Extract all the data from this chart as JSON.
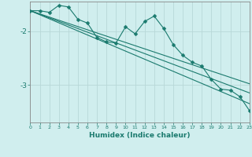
{
  "xlabel": "Humidex (Indice chaleur)",
  "bg_color": "#d0eeee",
  "grid_color": "#b8d8d8",
  "line_color": "#1a7a6e",
  "x_min": 0,
  "x_max": 23,
  "y_min": -3.7,
  "y_max": -1.45,
  "yticks": [
    -3.0,
    -2.0
  ],
  "xticks": [
    0,
    1,
    2,
    3,
    4,
    5,
    6,
    7,
    8,
    9,
    10,
    11,
    12,
    13,
    14,
    15,
    16,
    17,
    18,
    19,
    20,
    21,
    22,
    23
  ],
  "actual_x": [
    0,
    1,
    2,
    3,
    4,
    5,
    6,
    7,
    8,
    9,
    10,
    11,
    12,
    13,
    14,
    15,
    16,
    17,
    18,
    19,
    20,
    21,
    22,
    23
  ],
  "actual_y": [
    -1.62,
    -1.62,
    -1.65,
    -1.52,
    -1.55,
    -1.78,
    -1.85,
    -2.12,
    -2.2,
    -2.22,
    -1.92,
    -2.05,
    -1.82,
    -1.72,
    -1.95,
    -2.25,
    -2.45,
    -2.58,
    -2.65,
    -2.9,
    -3.08,
    -3.1,
    -3.22,
    -3.48
  ],
  "trend1_x": [
    0,
    23
  ],
  "trend1_y": [
    -1.62,
    -2.98
  ],
  "trend2_x": [
    0,
    23
  ],
  "trend2_y": [
    -1.62,
    -3.15
  ],
  "trend3_x": [
    0,
    23
  ],
  "trend3_y": [
    -1.62,
    -3.35
  ]
}
